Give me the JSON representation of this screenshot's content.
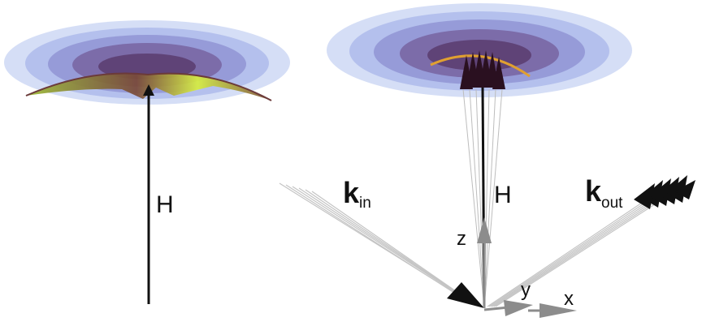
{
  "labels": {
    "h_left": "H",
    "h_right": "H",
    "k_in_main": "k",
    "k_in_sub": "in",
    "k_out_main": "k",
    "k_out_sub": "out",
    "axis_z": "z",
    "axis_y": "y",
    "axis_x": "x"
  },
  "colors": {
    "disk_outer": "#b8c8f0",
    "disk_inner": "#8a6aa8",
    "surface_green": "#c8e63a",
    "surface_dark": "#6b2a4a",
    "arc_orange": "#e0a030",
    "beam_gray": "#c8c8c8",
    "axis_gray": "#8c8c8c",
    "arrow_black": "#111111"
  }
}
